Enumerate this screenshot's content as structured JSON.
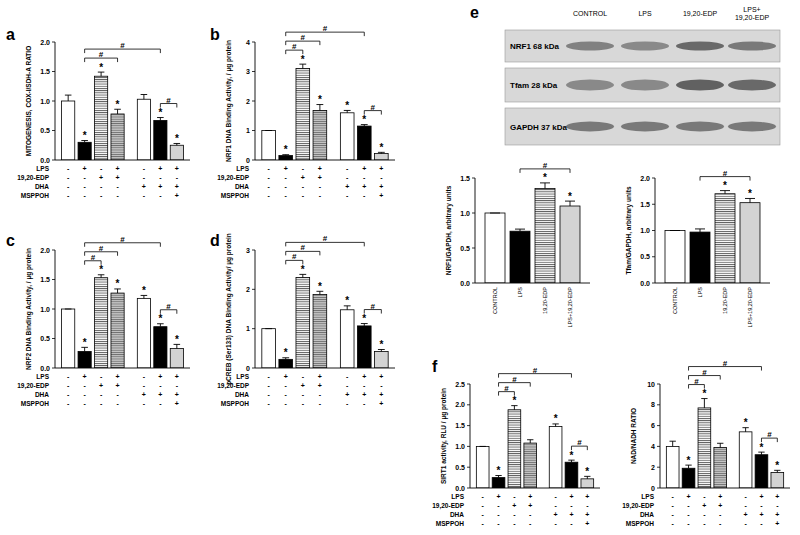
{
  "panel_labels": [
    "a",
    "b",
    "c",
    "d",
    "e",
    "f"
  ],
  "blot": {
    "lanes": [
      [
        "CONTROL"
      ],
      [
        "LPS"
      ],
      [
        "19,20-EDP"
      ],
      [
        "LPS+",
        "19,20-EDP"
      ]
    ],
    "bands": [
      "NRF1 68 kDa",
      "Tfam 28 kDa",
      "GAPDH 37 kDa"
    ]
  },
  "chart_data": [
    {
      "type": "bar",
      "y_label": "MITOGENESIS, COX-I/SDH-A RATIO",
      "categories": [
        null,
        null,
        null,
        null,
        null,
        null,
        null
      ],
      "values": [
        1.0,
        0.3,
        1.42,
        0.78,
        1.03,
        0.67,
        0.25
      ],
      "errors": [
        0.1,
        0.03,
        0.07,
        0.08,
        0.08,
        0.05,
        0.03
      ],
      "colors": [
        "#ffffff",
        "#000000",
        "#b4b4b4",
        "#9a9a9a",
        "#ffffff",
        "#000000",
        "#d3d3d3"
      ],
      "ylim": [
        0,
        2
      ],
      "yticks": [
        {
          "value": 0,
          "label": "0.0"
        },
        {
          "value": 0.5,
          "label": "0.5"
        },
        {
          "value": 1,
          "label": "1.0"
        },
        {
          "value": 1.5,
          "label": "1.5"
        },
        {
          "value": 2,
          "label": "2.0"
        }
      ],
      "annotations": [
        {
          "index": 1,
          "text": "*"
        },
        {
          "index": 2,
          "text": "*"
        },
        {
          "index": 3,
          "text": "*"
        },
        {
          "index": 5,
          "text": "*"
        },
        {
          "index": 6,
          "text": "*"
        }
      ],
      "brackets": [
        {
          "from": 1,
          "to": 3,
          "text": "#"
        },
        {
          "from": 1,
          "to": 5,
          "text": "#"
        },
        {
          "from": 5,
          "to": 6,
          "text": "#"
        }
      ],
      "conditions": [
        {
          "label": "LPS",
          "signs": [
            "-",
            "+",
            "-",
            "+",
            "-",
            "+",
            "+"
          ]
        },
        {
          "label": "19,20-EDP",
          "signs": [
            "-",
            "-",
            "+",
            "+",
            "-",
            "-",
            "-"
          ]
        },
        {
          "label": "DHA",
          "signs": [
            "-",
            "-",
            "-",
            "-",
            "+",
            "+",
            "+"
          ]
        },
        {
          "label": "MSPPOH",
          "signs": [
            "-",
            "-",
            "-",
            "-",
            "-",
            "-",
            "+"
          ]
        }
      ]
    },
    {
      "type": "bar",
      "y_label": "NRF1 DNA Binding Activity, / µg protein",
      "categories": [
        null,
        null,
        null,
        null,
        null,
        null,
        null
      ],
      "values": [
        1.0,
        0.15,
        3.1,
        1.68,
        1.6,
        1.15,
        0.22
      ],
      "errors": [
        0,
        0.03,
        0.15,
        0.2,
        0.08,
        0.05,
        0.04
      ],
      "colors": [
        "#ffffff",
        "#000000",
        "#b4b4b4",
        "#9a9a9a",
        "#ffffff",
        "#000000",
        "#d3d3d3"
      ],
      "ylim": [
        0,
        4
      ],
      "yticks": [
        0,
        1,
        2,
        3,
        4
      ],
      "annotations": [
        {
          "index": 1,
          "text": "*"
        },
        {
          "index": 2,
          "text": "*"
        },
        {
          "index": 3,
          "text": "*"
        },
        {
          "index": 4,
          "text": "*"
        },
        {
          "index": 5,
          "text": "*"
        },
        {
          "index": 6,
          "text": "*"
        }
      ],
      "brackets": [
        {
          "from": 1,
          "to": 2,
          "text": "#"
        },
        {
          "from": 1,
          "to": 3,
          "text": "#"
        },
        {
          "from": 1,
          "to": 5,
          "text": "#"
        },
        {
          "from": 5,
          "to": 6,
          "text": "#"
        }
      ],
      "conditions": [
        {
          "label": "LPS",
          "signs": [
            "-",
            "+",
            "-",
            "+",
            "-",
            "+",
            "+"
          ]
        },
        {
          "label": "19,20-EDP",
          "signs": [
            "-",
            "-",
            "+",
            "+",
            "-",
            "-",
            "-"
          ]
        },
        {
          "label": "DHA",
          "signs": [
            "-",
            "-",
            "-",
            "-",
            "+",
            "+",
            "+"
          ]
        },
        {
          "label": "MSPPOH",
          "signs": [
            "-",
            "-",
            "-",
            "-",
            "-",
            "-",
            "+"
          ]
        }
      ]
    },
    {
      "type": "bar",
      "y_label": "NRF2 DNA Binding Activity, / µg protein",
      "categories": [
        null,
        null,
        null,
        null,
        null,
        null,
        null
      ],
      "values": [
        1.0,
        0.28,
        1.53,
        1.27,
        1.18,
        0.7,
        0.33
      ],
      "errors": [
        0,
        0.07,
        0.05,
        0.07,
        0.05,
        0.05,
        0.07
      ],
      "colors": [
        "#ffffff",
        "#000000",
        "#b4b4b4",
        "#9a9a9a",
        "#ffffff",
        "#000000",
        "#d3d3d3"
      ],
      "ylim": [
        0,
        2
      ],
      "yticks": [
        {
          "value": 0,
          "label": "0.0"
        },
        {
          "value": 0.5,
          "label": "0.5"
        },
        {
          "value": 1,
          "label": "1.0"
        },
        {
          "value": 1.5,
          "label": "1.5"
        },
        {
          "value": 2,
          "label": "2.0"
        }
      ],
      "annotations": [
        {
          "index": 1,
          "text": "*"
        },
        {
          "index": 2,
          "text": "*"
        },
        {
          "index": 3,
          "text": "*"
        },
        {
          "index": 4,
          "text": "*"
        },
        {
          "index": 5,
          "text": "*"
        },
        {
          "index": 6,
          "text": "*"
        }
      ],
      "brackets": [
        {
          "from": 1,
          "to": 2,
          "text": "#"
        },
        {
          "from": 1,
          "to": 3,
          "text": "#"
        },
        {
          "from": 1,
          "to": 5,
          "text": "#"
        },
        {
          "from": 5,
          "to": 6,
          "text": "#"
        }
      ],
      "conditions": [
        {
          "label": "LPS",
          "signs": [
            "-",
            "+",
            "-",
            "+",
            "-",
            "+",
            "+"
          ]
        },
        {
          "label": "19,20-EDP",
          "signs": [
            "-",
            "-",
            "+",
            "+",
            "-",
            "-",
            "-"
          ]
        },
        {
          "label": "DHA",
          "signs": [
            "-",
            "-",
            "-",
            "-",
            "+",
            "+",
            "+"
          ]
        },
        {
          "label": "MSPPOH",
          "signs": [
            "-",
            "-",
            "-",
            "-",
            "-",
            "-",
            "+"
          ]
        }
      ]
    },
    {
      "type": "bar",
      "y_label": "pCREB (Ser133) DNA Binding Activity/ µg protein",
      "categories": [
        null,
        null,
        null,
        null,
        null,
        null,
        null
      ],
      "values": [
        1.0,
        0.22,
        2.3,
        1.87,
        1.48,
        1.07,
        0.42
      ],
      "errors": [
        0,
        0.04,
        0.08,
        0.08,
        0.1,
        0.06,
        0.05
      ],
      "colors": [
        "#ffffff",
        "#000000",
        "#b4b4b4",
        "#9a9a9a",
        "#ffffff",
        "#000000",
        "#d3d3d3"
      ],
      "ylim": [
        0,
        3
      ],
      "yticks": [
        0,
        1,
        2,
        3
      ],
      "annotations": [
        {
          "index": 1,
          "text": "*"
        },
        {
          "index": 2,
          "text": "*"
        },
        {
          "index": 3,
          "text": "*"
        },
        {
          "index": 4,
          "text": "*"
        },
        {
          "index": 5,
          "text": "*"
        },
        {
          "index": 6,
          "text": "*"
        }
      ],
      "brackets": [
        {
          "from": 1,
          "to": 2,
          "text": "#"
        },
        {
          "from": 1,
          "to": 3,
          "text": "#"
        },
        {
          "from": 1,
          "to": 5,
          "text": "#"
        },
        {
          "from": 5,
          "to": 6,
          "text": "#"
        }
      ],
      "conditions": [
        {
          "label": "LPS",
          "signs": [
            "-",
            "+",
            "-",
            "+",
            "-",
            "+",
            "+"
          ]
        },
        {
          "label": "19,20-EDP",
          "signs": [
            "-",
            "-",
            "+",
            "+",
            "-",
            "-",
            "-"
          ]
        },
        {
          "label": "DHA",
          "signs": [
            "-",
            "-",
            "-",
            "-",
            "+",
            "+",
            "+"
          ]
        },
        {
          "label": "MSPPOH",
          "signs": [
            "-",
            "-",
            "-",
            "-",
            "-",
            "-",
            "+"
          ]
        }
      ]
    },
    {
      "type": "bar",
      "y_label": "NRF1/GAPDH, arbitrary units",
      "categories": [
        "CONTROL",
        "LPS",
        "19,20-EDP",
        "LPS+19,20-EDP"
      ],
      "values": [
        1.0,
        0.74,
        1.35,
        1.1
      ],
      "errors": [
        0,
        0.03,
        0.08,
        0.07
      ],
      "colors": [
        "#ffffff",
        "#000000",
        "#b4b4b4",
        "#d3d3d3"
      ],
      "ylim": [
        0,
        1.5
      ],
      "yticks": [
        {
          "value": 0,
          "label": "0.0"
        },
        {
          "value": 0.5,
          "label": "0.5"
        },
        {
          "value": 1,
          "label": "1.0"
        },
        {
          "value": 1.5,
          "label": "1.5"
        }
      ],
      "annotations": [
        {
          "index": 2,
          "text": "*"
        },
        {
          "index": 3,
          "text": "*"
        }
      ],
      "brackets": [
        {
          "from": 1,
          "to": 3,
          "text": "#"
        }
      ]
    },
    {
      "type": "bar",
      "y_label": "Tfam/GAPDH, arbitrary units",
      "categories": [
        "CONTROL",
        "LPS",
        "19,20-EDP",
        "LPS+19,20-EDP"
      ],
      "values": [
        1.0,
        0.97,
        1.7,
        1.53
      ],
      "errors": [
        0,
        0.06,
        0.06,
        0.08
      ],
      "colors": [
        "#ffffff",
        "#000000",
        "#b4b4b4",
        "#d3d3d3"
      ],
      "ylim": [
        0,
        2
      ],
      "yticks": [
        {
          "value": 0,
          "label": "0.0"
        },
        {
          "value": 0.5,
          "label": "0.5"
        },
        {
          "value": 1,
          "label": "1.0"
        },
        {
          "value": 1.5,
          "label": "1.5"
        },
        {
          "value": 2,
          "label": "2.0"
        }
      ],
      "annotations": [
        {
          "index": 2,
          "text": "*"
        },
        {
          "index": 3,
          "text": "*"
        }
      ],
      "brackets": [
        {
          "from": 1,
          "to": 3,
          "text": "#"
        }
      ]
    },
    {
      "type": "bar",
      "y_label": "SIRT1 activity, RLU / µg protein",
      "categories": [
        null,
        null,
        null,
        null,
        null,
        null,
        null
      ],
      "values": [
        1.0,
        0.25,
        1.88,
        1.08,
        1.48,
        0.62,
        0.22
      ],
      "errors": [
        0,
        0.05,
        0.1,
        0.08,
        0.06,
        0.05,
        0.06
      ],
      "colors": [
        "#ffffff",
        "#000000",
        "#b4b4b4",
        "#9a9a9a",
        "#ffffff",
        "#000000",
        "#d3d3d3"
      ],
      "ylim": [
        0,
        2.5
      ],
      "yticks": [
        {
          "value": 0,
          "label": "0.0"
        },
        {
          "value": 0.5,
          "label": "0.5"
        },
        {
          "value": 1,
          "label": "1.0"
        },
        {
          "value": 1.5,
          "label": "1.5"
        },
        {
          "value": 2,
          "label": "2.0"
        },
        {
          "value": 2.5,
          "label": "2.5"
        }
      ],
      "annotations": [
        {
          "index": 1,
          "text": "*"
        },
        {
          "index": 2,
          "text": "*"
        },
        {
          "index": 4,
          "text": "*"
        },
        {
          "index": 5,
          "text": "*"
        },
        {
          "index": 6,
          "text": "*"
        }
      ],
      "brackets": [
        {
          "from": 1,
          "to": 2,
          "text": "#"
        },
        {
          "from": 1,
          "to": 3,
          "text": "#"
        },
        {
          "from": 1,
          "to": 5,
          "text": "#"
        },
        {
          "from": 5,
          "to": 6,
          "text": "#"
        }
      ],
      "conditions": [
        {
          "label": "LPS",
          "signs": [
            "-",
            "+",
            "-",
            "+",
            "-",
            "+",
            "+"
          ]
        },
        {
          "label": "19,20-EDP",
          "signs": [
            "-",
            "-",
            "+",
            "+",
            "-",
            "-",
            "-"
          ]
        },
        {
          "label": "DHA",
          "signs": [
            "-",
            "-",
            "-",
            "-",
            "+",
            "+",
            "+"
          ]
        },
        {
          "label": "MSPPOH",
          "signs": [
            "-",
            "-",
            "-",
            "-",
            "-",
            "-",
            "+"
          ]
        }
      ]
    },
    {
      "type": "bar",
      "y_label": "NAD/NADH RATIO",
      "categories": [
        null,
        null,
        null,
        null,
        null,
        null,
        null
      ],
      "values": [
        4.0,
        1.9,
        7.7,
        3.9,
        5.4,
        3.2,
        1.5
      ],
      "errors": [
        0.5,
        0.3,
        0.9,
        0.4,
        0.4,
        0.25,
        0.2
      ],
      "colors": [
        "#ffffff",
        "#000000",
        "#b4b4b4",
        "#9a9a9a",
        "#ffffff",
        "#000000",
        "#d3d3d3"
      ],
      "ylim": [
        0,
        10
      ],
      "yticks": [
        0,
        2,
        4,
        6,
        8,
        10
      ],
      "annotations": [
        {
          "index": 1,
          "text": "*"
        },
        {
          "index": 2,
          "text": "*"
        },
        {
          "index": 4,
          "text": "*"
        },
        {
          "index": 5,
          "text": "*"
        },
        {
          "index": 6,
          "text": "*"
        }
      ],
      "brackets": [
        {
          "from": 1,
          "to": 2,
          "text": "#"
        },
        {
          "from": 1,
          "to": 3,
          "text": "#"
        },
        {
          "from": 1,
          "to": 5,
          "text": "#"
        },
        {
          "from": 5,
          "to": 6,
          "text": "#"
        }
      ],
      "conditions": [
        {
          "label": "LPS",
          "signs": [
            "-",
            "+",
            "-",
            "+",
            "-",
            "+",
            "+"
          ]
        },
        {
          "label": "19,20-EDP",
          "signs": [
            "-",
            "-",
            "+",
            "+",
            "-",
            "-",
            "-"
          ]
        },
        {
          "label": "DHA",
          "signs": [
            "-",
            "-",
            "-",
            "-",
            "+",
            "+",
            "+"
          ]
        },
        {
          "label": "MSPPOH",
          "signs": [
            "-",
            "-",
            "-",
            "-",
            "-",
            "-",
            "+"
          ]
        }
      ]
    }
  ]
}
